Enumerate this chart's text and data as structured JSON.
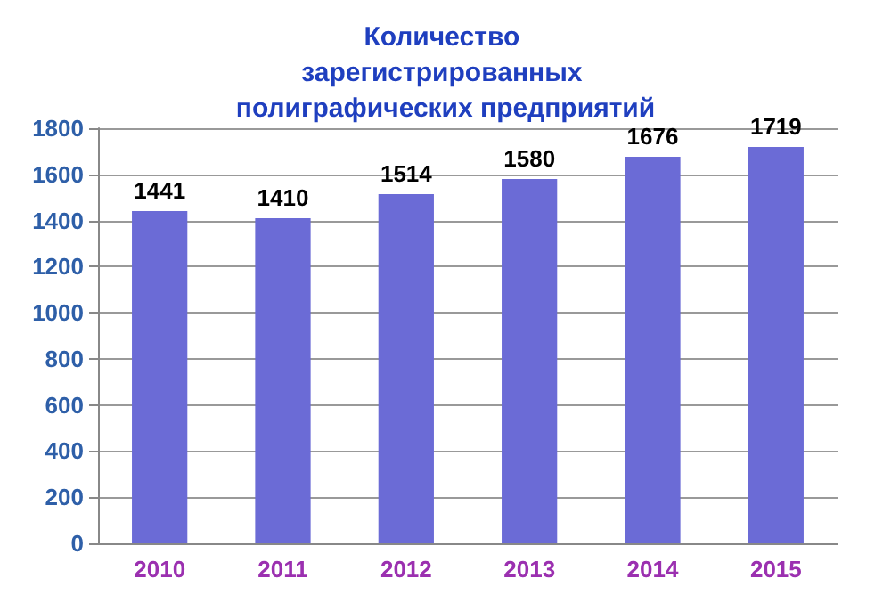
{
  "chart_data": {
    "type": "bar",
    "title": "Количество зарегистрированных полиграфических предприятий",
    "categories": [
      "2010",
      "2011",
      "2012",
      "2013",
      "2014",
      "2015"
    ],
    "values": [
      1441,
      1410,
      1514,
      1580,
      1676,
      1719
    ],
    "color": "#6b6bd6",
    "ylim": [
      0,
      1800
    ],
    "yticks": [
      0,
      200,
      400,
      600,
      800,
      1000,
      1200,
      1400,
      1600,
      1800
    ],
    "grid": true,
    "data_labels": true
  }
}
